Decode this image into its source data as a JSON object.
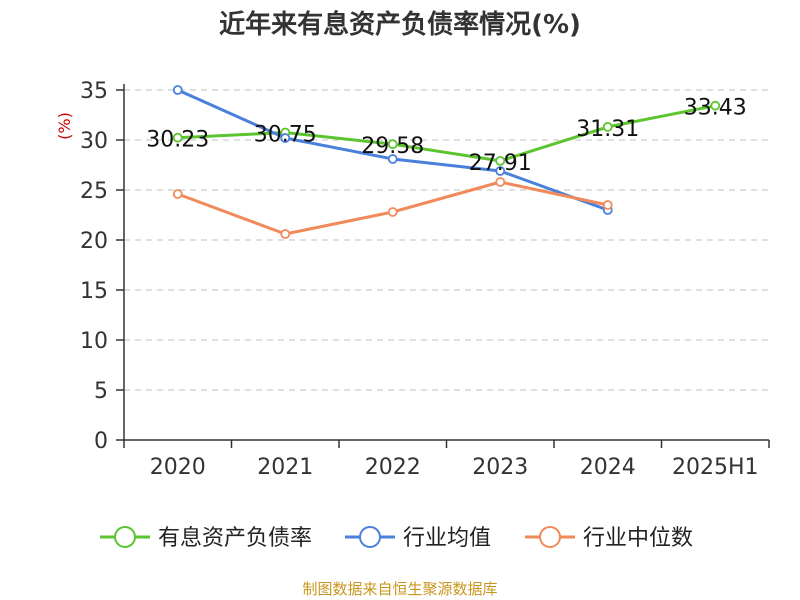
{
  "chart_data": {
    "type": "line",
    "title": "近年来有息资产负债率情况(%)",
    "ylabel": "(%)",
    "xlabel": "",
    "categories": [
      "2020",
      "2021",
      "2022",
      "2023",
      "2024",
      "2025H1"
    ],
    "ylim": [
      0,
      35
    ],
    "yticks": [
      0,
      5,
      10,
      15,
      20,
      25,
      30,
      35
    ],
    "grid": true,
    "legend_position": "bottom",
    "series": [
      {
        "name": "有息资产负债率",
        "color": "#5cc42e",
        "values": [
          30.23,
          30.75,
          29.58,
          27.91,
          31.31,
          33.43
        ],
        "show_labels": true
      },
      {
        "name": "行业均值",
        "color": "#4a7fdc",
        "values": [
          35.0,
          30.2,
          28.1,
          26.9,
          23.0,
          null
        ],
        "show_labels": false
      },
      {
        "name": "行业中位数",
        "color": "#f08a5a",
        "values": [
          24.6,
          20.6,
          22.8,
          25.8,
          23.5,
          null
        ],
        "show_labels": false
      }
    ]
  },
  "source": "制图数据来自恒生聚源数据库",
  "colors": {
    "ylabel": "#cc0000",
    "axis": "#333333",
    "grid": "#cccccc",
    "source": "#c8961e"
  }
}
